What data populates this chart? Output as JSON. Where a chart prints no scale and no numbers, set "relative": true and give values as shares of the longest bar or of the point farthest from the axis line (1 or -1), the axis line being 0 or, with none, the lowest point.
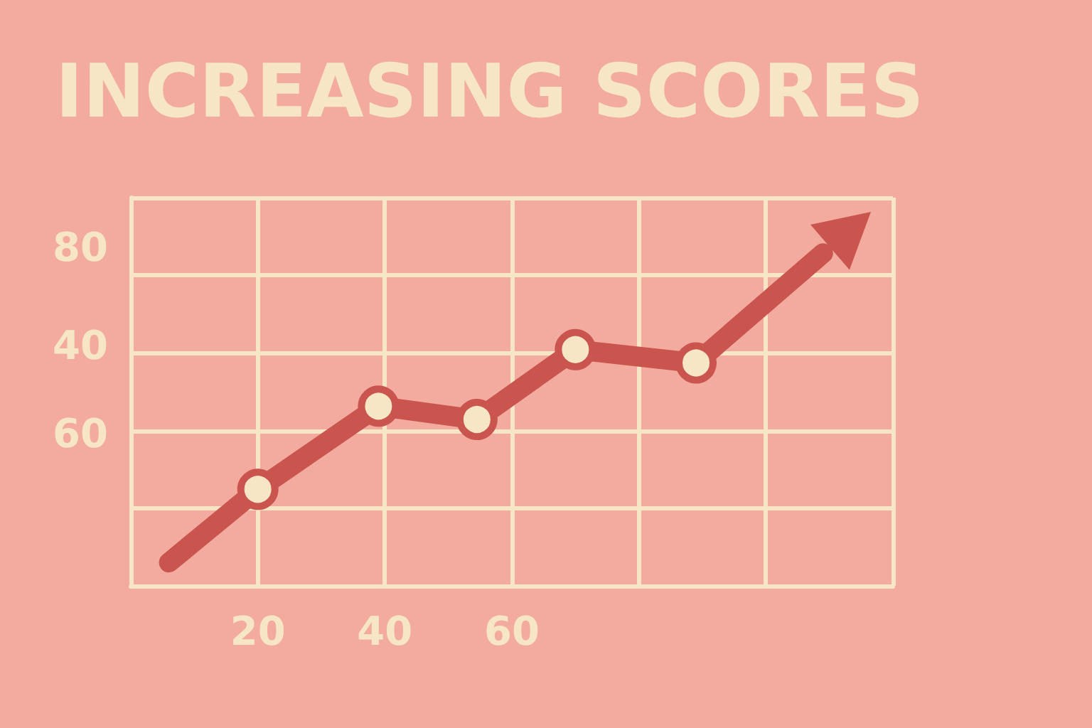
{
  "chart_data": {
    "type": "line",
    "title": "INCREASING SCORES",
    "relative": true,
    "x": [
      6,
      20,
      39,
      54.5,
      70,
      89,
      109
    ],
    "series": [
      {
        "color": "#c9554e",
        "values": [
          0.07,
          0.29,
          0.54,
          0.5,
          0.71,
          0.67,
          1
        ]
      }
    ],
    "xlim": [
      0,
      120
    ],
    "xticks": [
      {
        "value": 0,
        "label": null
      },
      20,
      40,
      60,
      {
        "value": 80,
        "label": null
      },
      {
        "value": 100,
        "label": null
      },
      {
        "value": 120,
        "label": null
      }
    ],
    "annotations": [
      "80",
      "40",
      "60"
    ],
    "grid": true,
    "marker": "circle",
    "line_style": "solid"
  }
}
